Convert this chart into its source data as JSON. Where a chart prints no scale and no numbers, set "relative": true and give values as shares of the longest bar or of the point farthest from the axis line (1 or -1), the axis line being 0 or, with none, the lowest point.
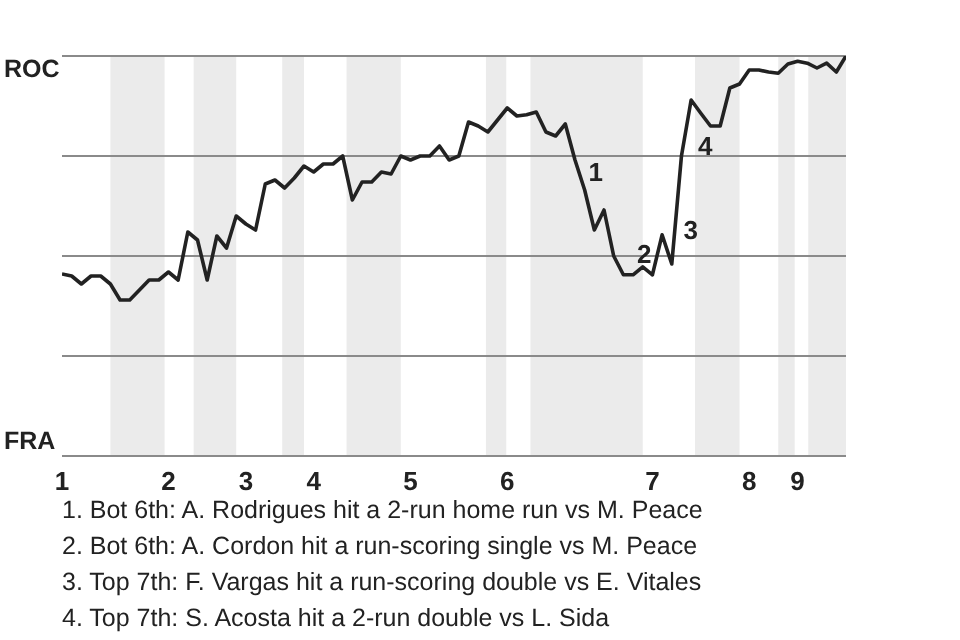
{
  "chart_data": {
    "type": "line",
    "relative": true,
    "categories": [
      "1",
      null,
      null,
      null,
      null,
      null,
      null,
      null,
      null,
      null,
      null,
      "2",
      null,
      null,
      null,
      null,
      null,
      null,
      null,
      "3",
      null,
      null,
      null,
      null,
      null,
      null,
      "4",
      null,
      null,
      null,
      null,
      null,
      null,
      null,
      null,
      null,
      "5",
      null,
      null,
      null,
      null,
      null,
      null,
      null,
      null,
      null,
      "6",
      null,
      null,
      null,
      null,
      null,
      null,
      null,
      null,
      null,
      null,
      null,
      null,
      null,
      null,
      "7",
      null,
      null,
      null,
      null,
      null,
      null,
      null,
      null,
      null,
      "8",
      null,
      null,
      null,
      null,
      "9",
      null,
      null,
      null,
      null,
      null
    ],
    "grid": "y",
    "line_style": "solid",
    "series": [
      {
        "color": "#222222",
        "values": [
          0.455,
          0.45,
          0.43,
          0.45,
          0.45,
          0.43,
          0.39,
          0.39,
          0.415,
          0.44,
          0.44,
          0.46,
          0.44,
          0.56,
          0.54,
          0.44,
          0.55,
          0.52,
          0.6,
          0.58,
          0.565,
          0.68,
          0.69,
          0.67,
          0.695,
          0.725,
          0.71,
          0.73,
          0.73,
          0.75,
          0.64,
          0.685,
          0.685,
          0.71,
          0.705,
          0.75,
          0.74,
          0.75,
          0.75,
          0.775,
          0.74,
          0.75,
          0.835,
          0.825,
          0.81,
          0.84,
          0.87,
          0.85,
          0.853,
          0.86,
          0.81,
          0.8,
          0.83,
          0.74,
          0.665,
          0.565,
          0.615,
          0.5,
          0.453,
          0.453,
          0.473,
          0.453,
          0.553,
          0.48,
          0.75,
          0.89,
          0.857,
          0.825,
          0.825,
          0.92,
          0.93,
          0.965,
          0.965,
          0.96,
          0.957,
          0.98,
          0.987,
          0.982,
          0.97,
          0.982,
          0.96,
          1
        ]
      }
    ],
    "annotations": [
      "ROC",
      "FRA",
      "1",
      "2",
      "3",
      "4",
      "1. Bot 6th: A. Rodrigues hit a 2-run home run vs M. Peace",
      "2. Bot 6th: A. Cordon hit a run-scoring single vs M. Peace",
      "3. Top 7th: F. Vargas hit a run-scoring double vs E. Vitales",
      "4. Top 7th: S. Acosta hit a 2-run double vs L. Sida"
    ]
  }
}
